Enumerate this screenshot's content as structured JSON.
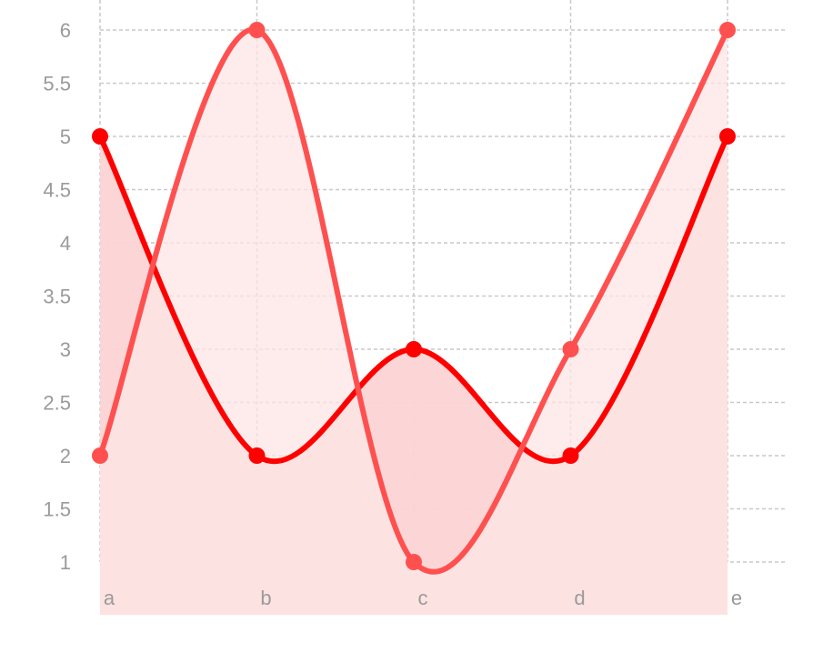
{
  "chart_data": {
    "type": "area",
    "categories": [
      "a",
      "b",
      "c",
      "d",
      "e"
    ],
    "series": [
      {
        "values": [
          5,
          2,
          3,
          2,
          5
        ],
        "color": "#ff0000",
        "fill": "#fcd4d4"
      },
      {
        "values": [
          2,
          6,
          1,
          3,
          6
        ],
        "color": "#ff5050",
        "fill": "#fde6e6"
      }
    ],
    "ylim": [
      1,
      6
    ],
    "yticks": [
      1,
      1.5,
      2,
      2.5,
      3,
      3.5,
      4,
      4.5,
      5,
      5.5,
      6
    ],
    "grid": true,
    "line_style": "smooth",
    "title": "",
    "xlabel": "",
    "ylabel": ""
  }
}
